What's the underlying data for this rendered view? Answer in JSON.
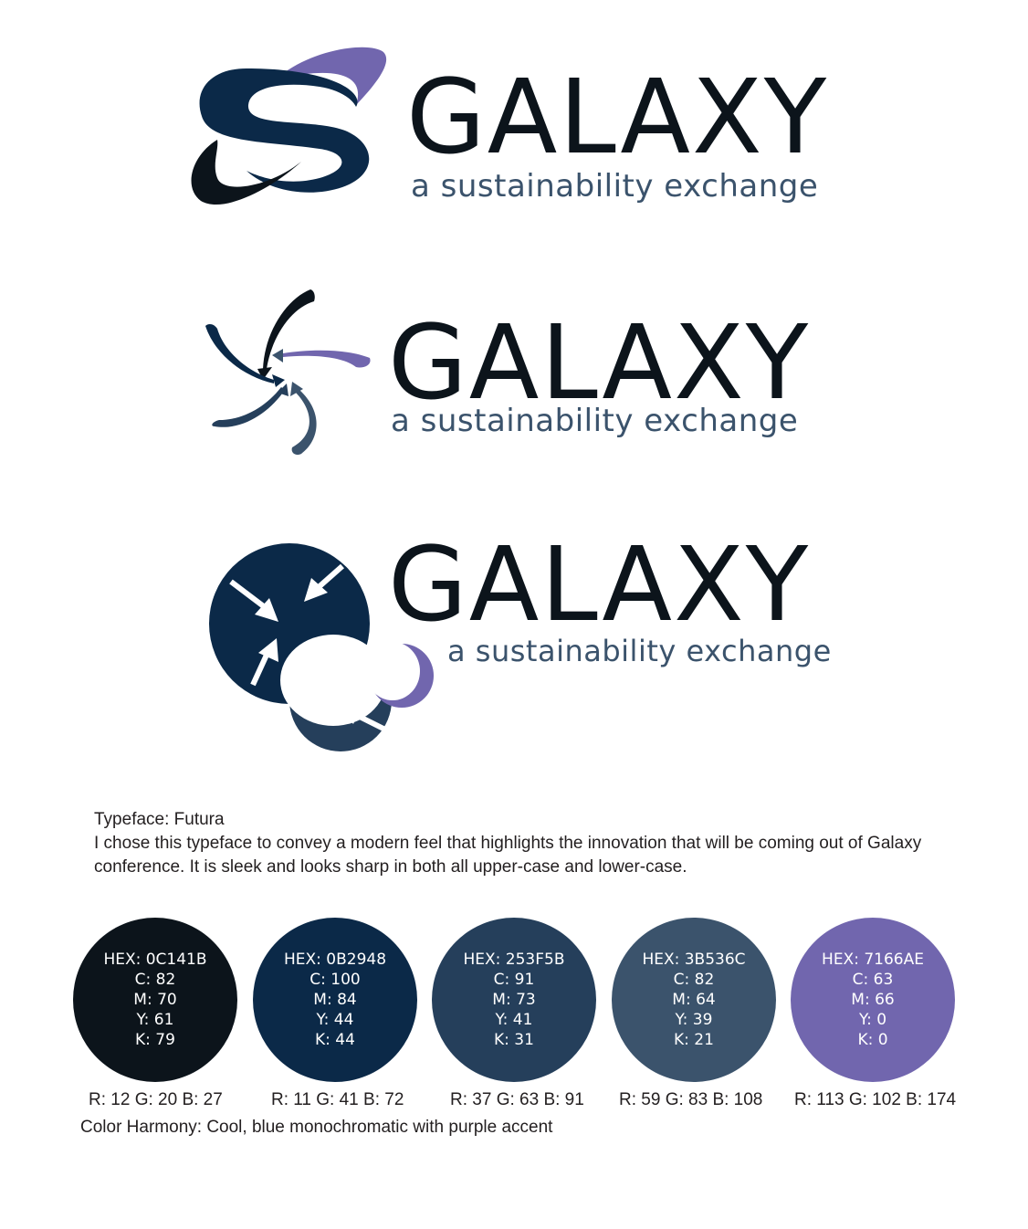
{
  "logos": [
    {
      "wordmark": "GALAXY",
      "tagline": "a sustainability exchange"
    },
    {
      "wordmark": "GALAXY",
      "tagline": "a sustainability exchange"
    },
    {
      "wordmark": "GALAXY",
      "tagline": "a sustainability exchange"
    }
  ],
  "colors": {
    "wordmark": "#0C141B",
    "tagline": "#3B536C"
  },
  "typeface": {
    "heading": "Typeface: Futura",
    "description": "I chose this typeface to convey a modern feel that highlights the innovation that will be coming out of Galaxy conference. It is sleek and looks sharp in both all upper-case and lower-case."
  },
  "swatches": [
    {
      "hex": "HEX: 0C141B",
      "c": "C: 82",
      "m": "M: 70",
      "y": "Y: 61",
      "k": "K: 79",
      "rgb": "R: 12 G: 20 B: 27",
      "color": "#0C141B"
    },
    {
      "hex": "HEX: 0B2948",
      "c": "C: 100",
      "m": "M: 84",
      "y": "Y: 44",
      "k": "K: 44",
      "rgb": "R: 11 G: 41 B: 72",
      "color": "#0B2948"
    },
    {
      "hex": "HEX: 253F5B",
      "c": "C: 91",
      "m": "M: 73",
      "y": "Y: 41",
      "k": "K: 31",
      "rgb": "R: 37 G: 63 B: 91",
      "color": "#253F5B"
    },
    {
      "hex": "HEX: 3B536C",
      "c": "C: 82",
      "m": "M: 64",
      "y": "Y: 39",
      "k": "K: 21",
      "rgb": "R: 59 G: 83 B: 108",
      "color": "#3B536C"
    },
    {
      "hex": "HEX: 7166AE",
      "c": "C: 63",
      "m": "M: 66",
      "y": "Y: 0",
      "k": "K: 0",
      "rgb": "R: 113 G: 102 B: 174",
      "color": "#7166AE"
    }
  ],
  "harmony": "Color Harmony: Cool, blue monochromatic with purple accent"
}
